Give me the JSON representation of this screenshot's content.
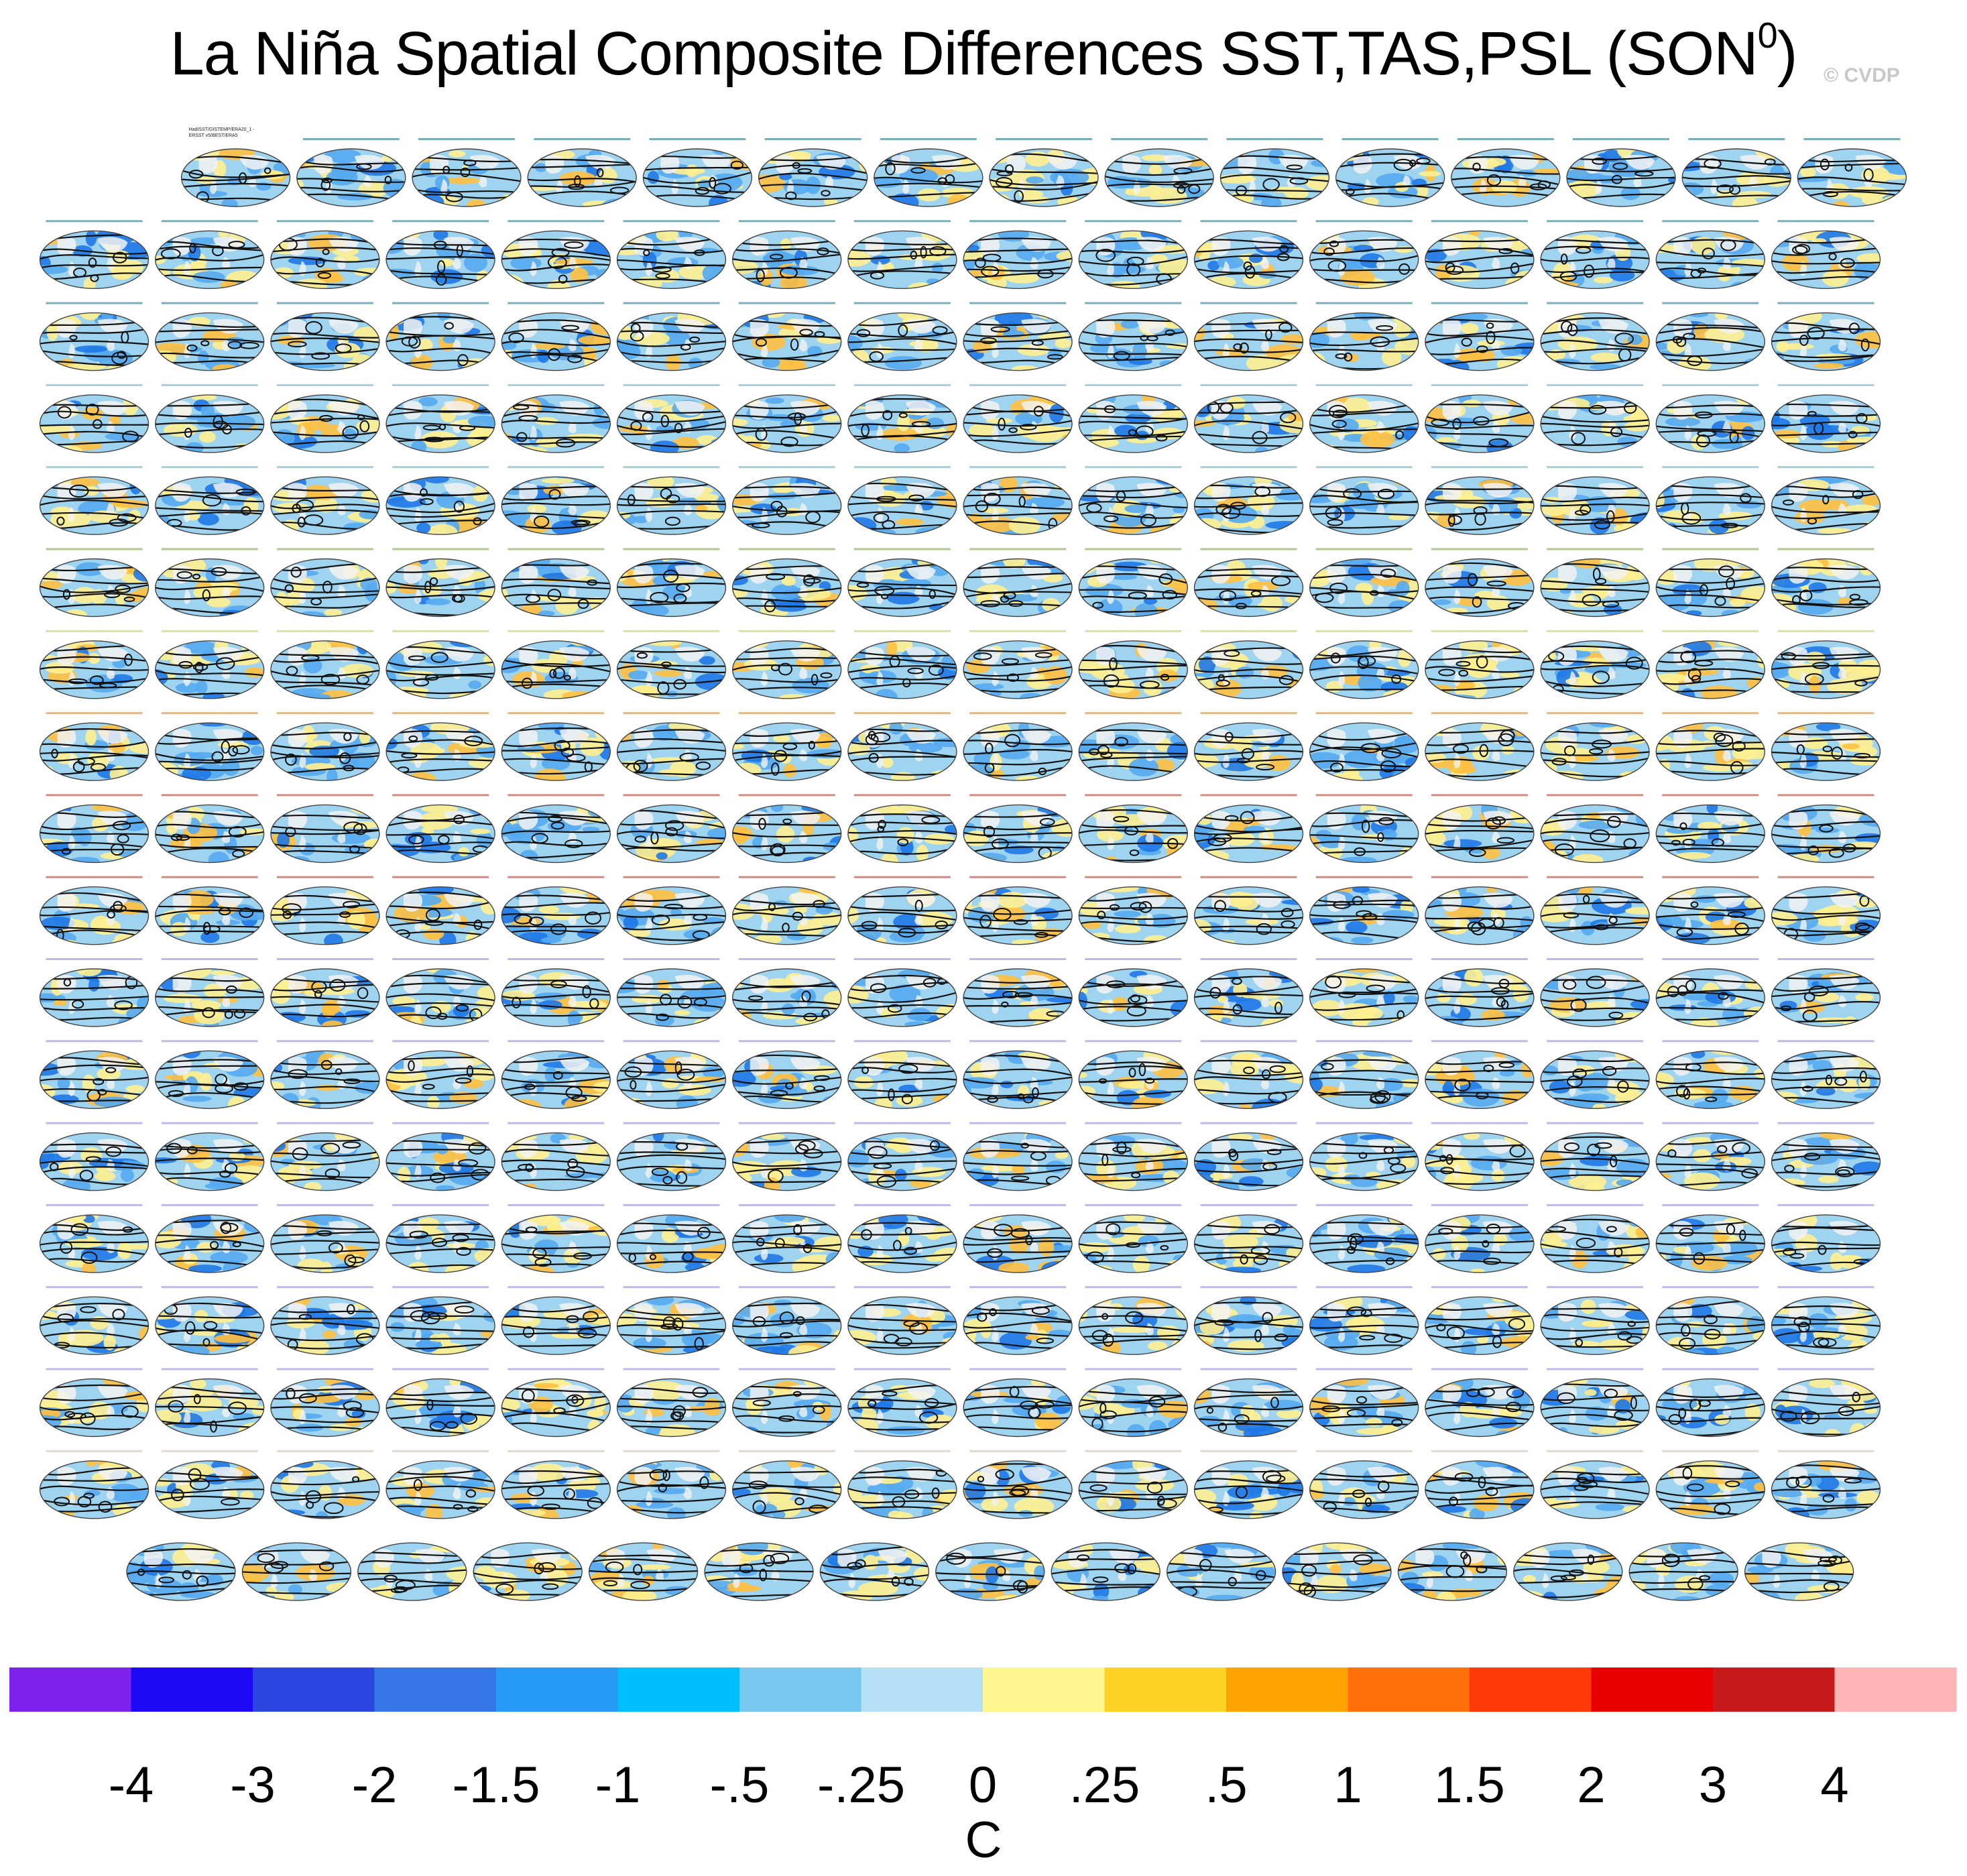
{
  "title": "La Niña Spatial Composite Differences SST,TAS,PSL (SON",
  "title_superscript": "0",
  "title_close": ")",
  "copyright": "© CVDP",
  "first_panel_label": [
    "HadISST/GISTEMP/ERA20_1 -",
    "ERSST v5/BEST/ERA5"
  ],
  "grid": {
    "row_counts": [
      15,
      16,
      16,
      16,
      16,
      16,
      16,
      16,
      16,
      16,
      16,
      16,
      16,
      16,
      16,
      16,
      16,
      15
    ],
    "label_colors": [
      "#0d6a82",
      "#0d6a82",
      "#0d6a82",
      "#5aa7c4",
      "#5aa7c4",
      "#6a9a36",
      "#b6c46a",
      "#c0812e",
      "#b22a1a",
      "#b22a1a",
      "#8a7fd8",
      "#8a7fd8",
      "#8a7fd8",
      "#8a7fd8",
      "#8a7fd8",
      "#8a7fd8",
      "#c9b8a8",
      "#c9b8a8"
    ],
    "map_colors": {
      "ocean_blue": "#9fd4f0",
      "cool": "#55aaf0",
      "cold": "#1e78e6",
      "warm": "#fff090",
      "hot": "#ffc040",
      "land": "#f2f2f2",
      "contour": "#111111"
    }
  },
  "colorbar": {
    "colors": [
      "#7f22ed",
      "#1f0af5",
      "#2a45e0",
      "#3577e6",
      "#2699f5",
      "#00bfff",
      "#78c7ef",
      "#b5dff5",
      "#fff68f",
      "#ffd326",
      "#ffa305",
      "#ff700a",
      "#ff3a08",
      "#e80000",
      "#c81a1a",
      "#ffb5b5"
    ],
    "labels": [
      "-4",
      "-3",
      "-2",
      "-1.5",
      "-1",
      "-.5",
      "-.25",
      "0",
      ".25",
      ".5",
      "1",
      "1.5",
      "2",
      "3",
      "4"
    ],
    "unit": "C"
  }
}
